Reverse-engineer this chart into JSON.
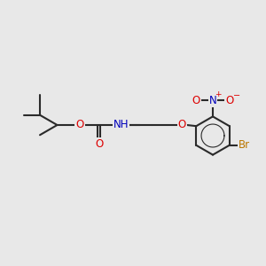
{
  "bg_color": "#e8e8e8",
  "bond_color": "#2a2a2a",
  "atom_colors": {
    "O": "#dd0000",
    "N": "#0000bb",
    "Br": "#bb7700",
    "H": "#444444",
    "plus": "#dd0000",
    "minus": "#dd0000"
  },
  "lw": 1.5,
  "fs": 8.5
}
